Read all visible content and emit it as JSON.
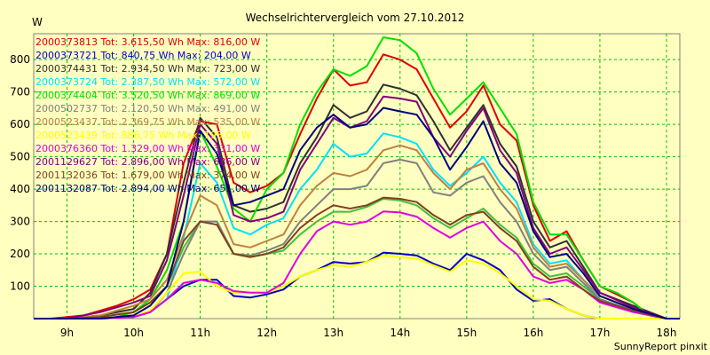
{
  "chart_data": {
    "type": "line",
    "title": "Wechselrichtervergleich vom 27.10.2012",
    "ylabel": "W",
    "xlabel": "",
    "footer": "SunnyReport pinxit",
    "xlim": [
      8.5,
      18.2
    ],
    "ylim": [
      0,
      880
    ],
    "y_ticks": [
      100,
      200,
      300,
      400,
      500,
      600,
      700,
      800
    ],
    "x_ticks": [
      {
        "value": 9,
        "label": "9h"
      },
      {
        "value": 10,
        "label": "10h"
      },
      {
        "value": 11,
        "label": "11h"
      },
      {
        "value": 12,
        "label": "12h"
      },
      {
        "value": 13,
        "label": "13h"
      },
      {
        "value": 14,
        "label": "14h"
      },
      {
        "value": 15,
        "label": "15h"
      },
      {
        "value": 16,
        "label": "16h"
      },
      {
        "value": 17,
        "label": "17h"
      },
      {
        "value": 18,
        "label": "18h"
      }
    ],
    "grid": true,
    "legend_position": "top-left",
    "series": [
      {
        "name": "2000373813 Tot: 3.615,50 Wh Max: 816,00 W",
        "color": "#e00000",
        "x": [
          8.5,
          8.75,
          9,
          9.25,
          9.5,
          9.75,
          10,
          10.25,
          10.5,
          10.75,
          11,
          11.25,
          11.5,
          11.75,
          12,
          12.25,
          12.5,
          12.75,
          13,
          13.25,
          13.5,
          13.75,
          14,
          14.25,
          14.5,
          14.75,
          15,
          15.25,
          15.5,
          15.75,
          16,
          16.25,
          16.5,
          16.75,
          17,
          17.25,
          17.5,
          17.75,
          18,
          18.2
        ],
        "y": [
          0,
          0,
          5,
          10,
          25,
          40,
          60,
          90,
          200,
          480,
          610,
          600,
          420,
          390,
          410,
          450,
          570,
          680,
          770,
          720,
          730,
          816,
          800,
          770,
          680,
          590,
          640,
          720,
          600,
          550,
          350,
          240,
          270,
          180,
          100,
          75,
          50,
          10,
          0,
          0
        ]
      },
      {
        "name": "2000373721 Tot: 840,75 Wh Max: 204,00 W",
        "color": "#0000c0",
        "x": [
          8.5,
          9,
          9.5,
          10,
          10.25,
          10.5,
          10.75,
          11,
          11.25,
          11.5,
          11.75,
          12,
          12.25,
          12.5,
          12.75,
          13,
          13.25,
          13.5,
          13.75,
          14,
          14.25,
          14.5,
          14.75,
          15,
          15.25,
          15.5,
          15.75,
          16,
          16.25,
          16.5,
          16.75,
          17,
          17.5,
          18,
          18.2
        ],
        "y": [
          0,
          0,
          0,
          5,
          20,
          60,
          100,
          120,
          120,
          70,
          65,
          75,
          90,
          130,
          150,
          175,
          170,
          175,
          204,
          200,
          195,
          170,
          150,
          200,
          180,
          150,
          90,
          55,
          60,
          30,
          10,
          0,
          0,
          0,
          0
        ]
      },
      {
        "name": "2000374431 Tot: 2.934,50 Wh Max: 723,00 W",
        "color": "#303030",
        "x": [
          8.5,
          9,
          9.5,
          10,
          10.25,
          10.5,
          10.75,
          11,
          11.25,
          11.5,
          11.75,
          12,
          12.25,
          12.5,
          12.75,
          13,
          13.25,
          13.5,
          13.75,
          14,
          14.25,
          14.5,
          14.75,
          15,
          15.25,
          15.5,
          15.75,
          16,
          16.25,
          16.5,
          16.75,
          17,
          17.5,
          18,
          18.2
        ],
        "y": [
          0,
          0,
          10,
          30,
          80,
          200,
          420,
          620,
          560,
          350,
          330,
          340,
          360,
          480,
          560,
          660,
          620,
          640,
          723,
          710,
          690,
          610,
          520,
          590,
          660,
          540,
          470,
          300,
          220,
          240,
          160,
          80,
          40,
          0,
          0
        ]
      },
      {
        "name": "2000373724 Tot: 2.387,50 Wh Max: 572,00 W",
        "color": "#00e0ff",
        "x": [
          8.5,
          9,
          9.5,
          10,
          10.25,
          10.5,
          10.75,
          11,
          11.25,
          11.5,
          11.75,
          12,
          12.25,
          12.5,
          12.75,
          13,
          13.25,
          13.5,
          13.75,
          14,
          14.25,
          14.5,
          14.75,
          15,
          15.25,
          15.5,
          15.75,
          16,
          16.25,
          16.5,
          16.75,
          17,
          17.5,
          18,
          18.2
        ],
        "y": [
          0,
          0,
          0,
          5,
          20,
          60,
          250,
          480,
          420,
          280,
          260,
          290,
          310,
          400,
          460,
          540,
          500,
          510,
          572,
          560,
          540,
          460,
          410,
          450,
          500,
          420,
          360,
          230,
          170,
          180,
          120,
          60,
          25,
          0,
          0
        ]
      },
      {
        "name": "2000374404 Tot: 3.520,50 Wh Max: 869,00 W",
        "color": "#00e000",
        "x": [
          8.5,
          8.75,
          9,
          9.25,
          9.5,
          9.75,
          10,
          10.25,
          10.5,
          10.75,
          11,
          11.25,
          11.5,
          11.75,
          12,
          12.25,
          12.5,
          12.75,
          13,
          13.25,
          13.5,
          13.75,
          14,
          14.25,
          14.5,
          14.75,
          15,
          15.25,
          15.5,
          15.75,
          16,
          16.25,
          16.5,
          16.75,
          17,
          17.25,
          17.5,
          17.75,
          18,
          18.2
        ],
        "y": [
          0,
          0,
          0,
          0,
          0,
          5,
          20,
          60,
          150,
          300,
          580,
          470,
          340,
          300,
          400,
          450,
          600,
          700,
          770,
          750,
          780,
          869,
          860,
          820,
          710,
          630,
          680,
          730,
          650,
          570,
          360,
          260,
          260,
          180,
          100,
          80,
          50,
          10,
          0,
          0
        ]
      },
      {
        "name": "2000502737 Tot: 2.120,50 Wh Max: 491,00 W",
        "color": "#808080",
        "x": [
          8.5,
          9,
          9.5,
          10,
          10.25,
          10.5,
          10.75,
          11,
          11.25,
          11.5,
          11.75,
          12,
          12.25,
          12.5,
          12.75,
          13,
          13.25,
          13.5,
          13.75,
          14,
          14.25,
          14.5,
          14.75,
          15,
          15.25,
          15.5,
          15.75,
          16,
          16.25,
          16.5,
          16.75,
          17,
          17.5,
          18,
          18.2
        ],
        "y": [
          0,
          0,
          0,
          5,
          20,
          80,
          200,
          300,
          300,
          200,
          195,
          210,
          230,
          300,
          350,
          400,
          400,
          410,
          480,
          491,
          480,
          390,
          380,
          420,
          440,
          360,
          300,
          200,
          150,
          160,
          110,
          60,
          25,
          0,
          0
        ]
      },
      {
        "name": "2000523437 Tot: 2.369,75 Wh Max: 535,00 W",
        "color": "#c08040",
        "x": [
          8.5,
          9,
          9.5,
          10,
          10.25,
          10.5,
          10.75,
          11,
          11.25,
          11.5,
          11.75,
          12,
          12.25,
          12.5,
          12.75,
          13,
          13.25,
          13.5,
          13.75,
          14,
          14.25,
          14.5,
          14.75,
          15,
          15.25,
          15.5,
          15.75,
          16,
          16.25,
          16.5,
          16.75,
          17,
          17.5,
          18,
          18.2
        ],
        "y": [
          0,
          0,
          10,
          40,
          60,
          120,
          260,
          380,
          350,
          230,
          220,
          240,
          260,
          350,
          410,
          450,
          440,
          460,
          520,
          535,
          520,
          450,
          400,
          460,
          480,
          400,
          340,
          220,
          160,
          170,
          120,
          70,
          30,
          0,
          0
        ]
      },
      {
        "name": "2000523439 Tot: 886,75 Wh Max: 195,00 W",
        "color": "#ffff00",
        "x": [
          8.5,
          9,
          9.5,
          10,
          10.25,
          10.5,
          10.75,
          11,
          11.25,
          11.5,
          11.75,
          12,
          12.25,
          12.5,
          12.75,
          13,
          13.25,
          13.5,
          13.75,
          14,
          14.25,
          14.5,
          14.75,
          15,
          15.25,
          15.5,
          15.75,
          16,
          16.25,
          16.5,
          16.75,
          17,
          17.5,
          18,
          18.2
        ],
        "y": [
          0,
          0,
          0,
          5,
          25,
          80,
          140,
          145,
          100,
          80,
          80,
          80,
          100,
          130,
          150,
          165,
          160,
          175,
          195,
          190,
          185,
          165,
          145,
          180,
          170,
          140,
          100,
          60,
          55,
          30,
          10,
          0,
          0,
          0,
          0
        ]
      },
      {
        "name": "2000376360 Tot: 1.329,00 Wh Max: 331,00 W",
        "color": "#e000e0",
        "x": [
          8.5,
          9,
          9.5,
          10,
          10.25,
          10.5,
          10.75,
          11,
          11.25,
          11.5,
          11.75,
          12,
          12.25,
          12.5,
          12.75,
          13,
          13.25,
          13.5,
          13.75,
          14,
          14.25,
          14.5,
          14.75,
          15,
          15.25,
          15.5,
          15.75,
          16,
          16.25,
          16.5,
          16.75,
          17,
          17.5,
          18,
          18.2
        ],
        "y": [
          0,
          0,
          0,
          5,
          20,
          60,
          110,
          120,
          110,
          85,
          80,
          80,
          110,
          200,
          270,
          300,
          290,
          300,
          331,
          328,
          315,
          280,
          250,
          280,
          300,
          240,
          200,
          130,
          110,
          120,
          90,
          50,
          20,
          0,
          0
        ]
      },
      {
        "name": "2001129627 Tot: 2.896,00 Wh Max: 686,00 W",
        "color": "#800080",
        "x": [
          8.5,
          9,
          9.5,
          10,
          10.25,
          10.5,
          10.75,
          11,
          11.25,
          11.5,
          11.75,
          12,
          12.25,
          12.5,
          12.75,
          13,
          13.25,
          13.5,
          13.75,
          14,
          14.25,
          14.5,
          14.75,
          15,
          15.25,
          15.5,
          15.75,
          16,
          16.25,
          16.5,
          16.75,
          17,
          17.5,
          18,
          18.2
        ],
        "y": [
          0,
          0,
          20,
          50,
          70,
          180,
          380,
          600,
          540,
          320,
          300,
          310,
          330,
          460,
          540,
          620,
          590,
          610,
          686,
          680,
          670,
          560,
          500,
          580,
          650,
          520,
          450,
          280,
          200,
          220,
          150,
          80,
          35,
          0,
          0
        ]
      },
      {
        "name": "2001132036 Tot: 1.679,00 Wh Max: 374,00 W",
        "color": "#804020",
        "x": [
          8.5,
          9,
          9.5,
          10,
          10.25,
          10.5,
          10.75,
          11,
          11.25,
          11.5,
          11.75,
          12,
          12.25,
          12.5,
          12.75,
          13,
          13.25,
          13.5,
          13.75,
          14,
          14.25,
          14.5,
          14.75,
          15,
          15.25,
          15.5,
          15.75,
          16,
          16.25,
          16.5,
          16.75,
          17,
          17.5,
          18,
          18.2
        ],
        "y": [
          0,
          0,
          5,
          20,
          50,
          100,
          240,
          300,
          290,
          200,
          190,
          200,
          220,
          280,
          320,
          350,
          340,
          350,
          374,
          370,
          360,
          320,
          290,
          320,
          330,
          280,
          240,
          160,
          120,
          130,
          90,
          55,
          25,
          0,
          0
        ]
      },
      {
        "name": "2001132087 Tot: 2.894,00 Wh Max: 651,00 W",
        "color": "#000080",
        "x": [
          8.5,
          9,
          9.5,
          10,
          10.25,
          10.5,
          10.75,
          11,
          11.25,
          11.5,
          11.75,
          12,
          12.25,
          12.5,
          12.75,
          13,
          13.25,
          13.5,
          13.75,
          14,
          14.25,
          14.5,
          14.75,
          15,
          15.25,
          15.5,
          15.75,
          16,
          16.25,
          16.5,
          16.75,
          17,
          17.5,
          18,
          18.2
        ],
        "y": [
          0,
          0,
          0,
          10,
          40,
          100,
          300,
          580,
          510,
          350,
          360,
          380,
          400,
          520,
          590,
          630,
          590,
          600,
          651,
          640,
          630,
          560,
          460,
          530,
          610,
          480,
          420,
          270,
          190,
          200,
          140,
          70,
          30,
          0,
          0
        ]
      }
    ],
    "extra_line": {
      "color": "#40c040",
      "x": [
        8.5,
        9,
        9.5,
        10,
        10.25,
        10.5,
        10.75,
        11,
        11.25,
        11.5,
        11.75,
        12,
        12.25,
        12.5,
        12.75,
        13,
        13.25,
        13.5,
        13.75,
        14,
        14.25,
        14.5,
        14.75,
        15,
        15.25,
        15.5,
        15.75,
        16,
        16.25,
        16.5,
        16.75,
        17,
        17.5,
        18,
        18.2
      ],
      "y": [
        0,
        0,
        5,
        20,
        50,
        100,
        220,
        300,
        300,
        200,
        190,
        200,
        210,
        260,
        300,
        330,
        330,
        345,
        370,
        365,
        350,
        310,
        280,
        310,
        340,
        290,
        250,
        170,
        130,
        140,
        100,
        60,
        25,
        0,
        0
      ]
    }
  }
}
